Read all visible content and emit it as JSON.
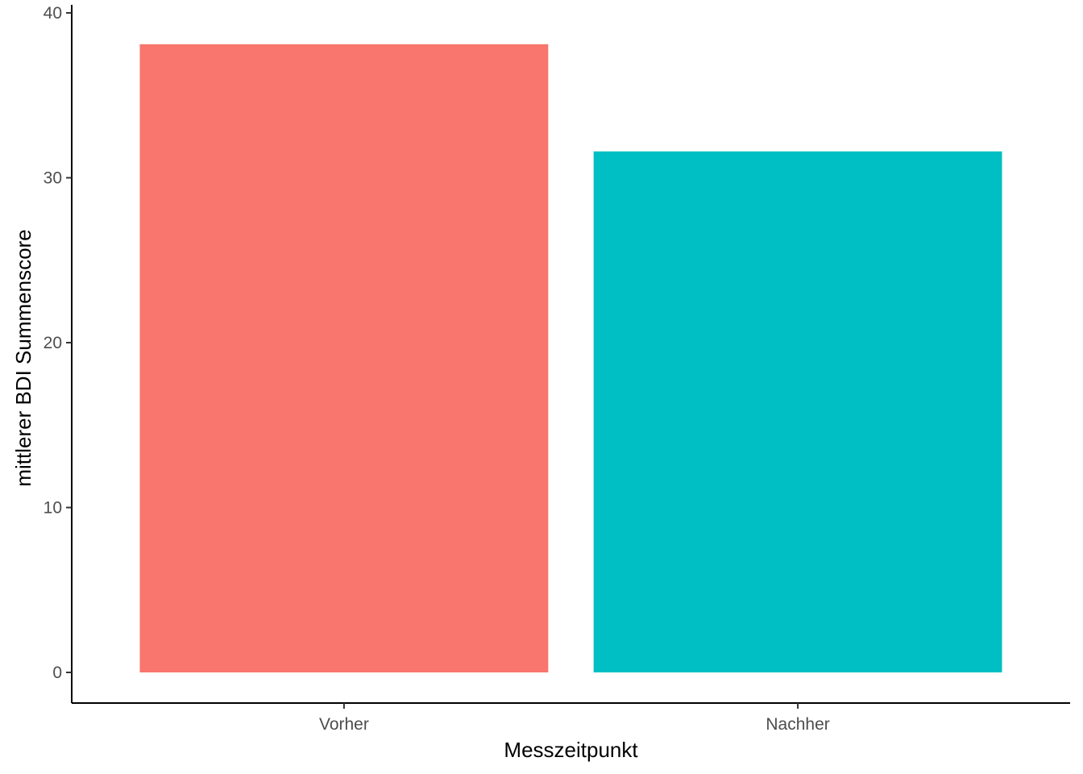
{
  "chart_data": {
    "type": "bar",
    "title": "",
    "xlabel": "Messzeitpunkt",
    "ylabel": "mittlerer BDI Summenscore",
    "categories": [
      "Vorher",
      "Nachher"
    ],
    "values": [
      38.1,
      31.6
    ],
    "colors": [
      "#F8766D",
      "#00BFC4"
    ],
    "ylim": [
      0,
      40
    ],
    "yticks": [
      0,
      10,
      20,
      30,
      40
    ],
    "grid": false,
    "legend": "none"
  }
}
